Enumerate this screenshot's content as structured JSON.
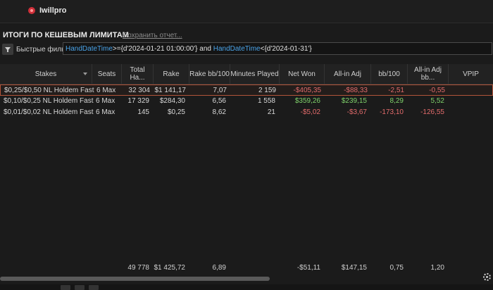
{
  "app": {
    "logo_text": "Iwillpro"
  },
  "header": {
    "title": "ИТОГИ ПО КЕШЕВЫМ ЛИМИТАМ",
    "save_link": "Сохранить отчет..."
  },
  "filter": {
    "label": "Быстрые фильтры",
    "parts": [
      "HandDateTime",
      ">={d'2024-01-21 01:00:00'} and ",
      "HandDateTime",
      "<{d'2024-01-31'}"
    ]
  },
  "columns": [
    "Stakes",
    "Seats",
    "Total Ha...",
    "Rake",
    "Rake bb/100",
    "Minutes Played",
    "Net Won",
    "All-in Adj",
    "bb/100",
    "All-in Adj bb...",
    "VPIP"
  ],
  "rows": [
    [
      "$0,25/$0,50 NL Holdem Fast",
      "6 Max",
      "32 304",
      "$1 141,17",
      "7,07",
      "2 159",
      "-$405,35",
      "-$88,33",
      "-2,51",
      "-0,55",
      ""
    ],
    [
      "$0,10/$0,25 NL Holdem Fast",
      "6 Max",
      "17 329",
      "$284,30",
      "6,56",
      "1 558",
      "$359,26",
      "$239,15",
      "8,29",
      "5,52",
      ""
    ],
    [
      "$0,01/$0,02 NL Holdem Fast",
      "6 Max",
      "145",
      "$0,25",
      "8,62",
      "21",
      "-$5,02",
      "-$3,67",
      "-173,10",
      "-126,55",
      ""
    ]
  ],
  "totals": [
    "",
    "",
    "49 778",
    "$1 425,72",
    "6,89",
    "",
    "-$51,11",
    "$147,15",
    "0,75",
    "1,20",
    ""
  ],
  "colors": {
    "positive": "#7fd36b",
    "negative": "#e26b6b",
    "selection": "#b2543a",
    "keyword": "#4aa3e8"
  }
}
